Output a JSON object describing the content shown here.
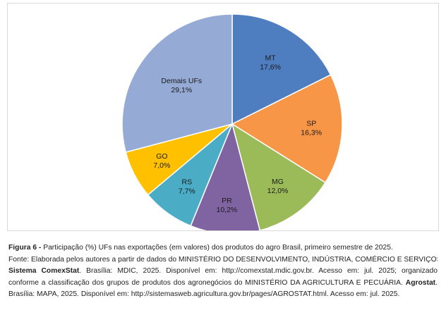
{
  "chart_data": {
    "type": "pie",
    "categories": [
      "MT",
      "SP",
      "MG",
      "PR",
      "RS",
      "GO",
      "Demais UFs"
    ],
    "values": [
      17.6,
      16.3,
      12.0,
      10.2,
      7.7,
      7.0,
      29.1
    ],
    "value_labels": [
      "17,6%",
      "16,3%",
      "12,0%",
      "10,2%",
      "7,7%",
      "7,0%",
      "29,1%"
    ],
    "colors": [
      "#4f7ec0",
      "#f79646",
      "#9bbb59",
      "#8064a2",
      "#4bacc6",
      "#ffc000",
      "#95abd5"
    ],
    "start_angle_deg": 0,
    "direction": "clockwise"
  },
  "caption": {
    "figure_label": "Figura 6 -",
    "figure_text": " Participação (%) UFs nas exportações (em valores) dos produtos do agro Brasil, primeiro semestre de 2025.",
    "line2": "Fonte: Elaborada pelos autores a partir de dados do MINISTÉRIO DO DESENVOLVIMENTO, INDÚSTRIA, COMÉRCIO E SERVIÇOS.",
    "line3_bold": "Sistema ComexStat",
    "line3_text": ". Brasília: MDIC, 2025. Disponível em: http://comexstat.mdic.gov.br. Acesso em: jul. 2025; organizado",
    "line4_text": "conforme a classificação dos grupos de produtos dos agronegócios do MINISTÉRIO DA AGRICULTURA E PECUÁRIA. ",
    "line4_bold": "Agrostat",
    "line4_end": ".",
    "line5": "Brasília: MAPA, 2025. Disponível em: http://sistemasweb.agricultura.gov.br/pages/AGROSTAT.html. Acesso em: jul. 2025."
  }
}
